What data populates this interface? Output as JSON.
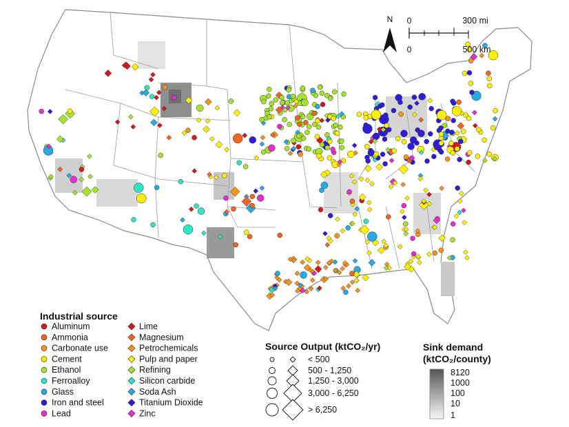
{
  "map": {
    "north_label": "N",
    "scale": {
      "zero_top": "0",
      "top_label": "300 mi",
      "zero_bottom": "0",
      "bottom_label": "500 km"
    }
  },
  "legend_sources": {
    "title": "Industrial source",
    "items": [
      {
        "label": "Aluminum",
        "shape": "circle",
        "color": "#d7191c"
      },
      {
        "label": "Ammonia",
        "shape": "circle",
        "color": "#f26522"
      },
      {
        "label": "Carbonate use",
        "shape": "circle",
        "color": "#f7941d"
      },
      {
        "label": "Cement",
        "shape": "circle",
        "color": "#fff200"
      },
      {
        "label": "Ethanol",
        "shape": "circle",
        "color": "#a6e22e"
      },
      {
        "label": "Ferroalloy",
        "shape": "circle",
        "color": "#2ee6c6"
      },
      {
        "label": "Glass",
        "shape": "circle",
        "color": "#29abe2"
      },
      {
        "label": "Iron and steel",
        "shape": "circle",
        "color": "#2e1cd6"
      },
      {
        "label": "Lead",
        "shape": "circle",
        "color": "#e62ed1"
      },
      {
        "label": "Lime",
        "shape": "diamond",
        "color": "#d7191c"
      },
      {
        "label": "Magnesium",
        "shape": "diamond",
        "color": "#f26522"
      },
      {
        "label": "Petrochemicals",
        "shape": "diamond",
        "color": "#f7941d"
      },
      {
        "label": "Pulp and paper",
        "shape": "diamond",
        "color": "#fff200"
      },
      {
        "label": "Refining",
        "shape": "diamond",
        "color": "#a6e22e"
      },
      {
        "label": "Silicon carbide",
        "shape": "diamond",
        "color": "#2ee6c6"
      },
      {
        "label": "Soda Ash",
        "shape": "diamond",
        "color": "#29abe2"
      },
      {
        "label": "Titanium Dioxide",
        "shape": "diamond",
        "color": "#2e1cd6"
      },
      {
        "label": "Zinc",
        "shape": "diamond",
        "color": "#e62ed1"
      }
    ]
  },
  "legend_output": {
    "title": "Source Output (ktCO₂/yr)",
    "classes": [
      "< 500",
      "500 - 1,250",
      "1,250 - 3,000",
      "3,000 - 6,250",
      "> 6,250"
    ]
  },
  "legend_sink": {
    "title_line1": "Sink demand",
    "title_line2": "(ktCO₂/county)",
    "ticks": [
      "8120",
      "1000",
      "100",
      "10",
      "1"
    ]
  }
}
